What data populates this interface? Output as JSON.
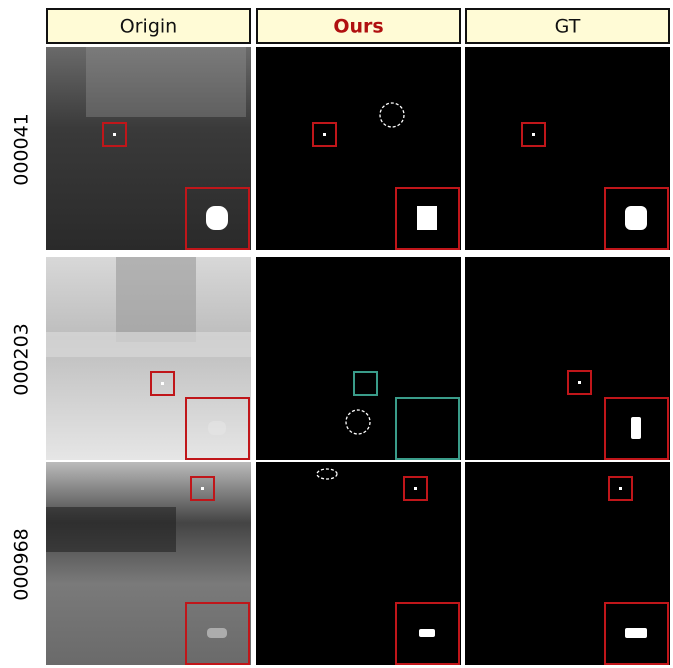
{
  "header": {
    "columns": [
      "Origin",
      "Ours",
      "GT"
    ]
  },
  "rows": [
    "000041",
    "000203",
    "000968"
  ]
}
